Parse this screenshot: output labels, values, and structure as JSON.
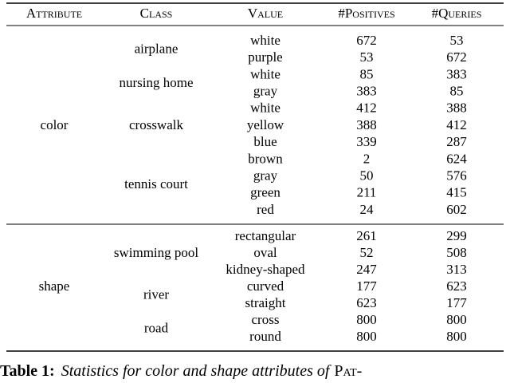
{
  "table": {
    "header": [
      "Attribute",
      "Class",
      "Value",
      "#Positives",
      "#Queries"
    ],
    "groups": [
      {
        "attribute": "color",
        "classes": [
          {
            "name": "airplane",
            "rows": [
              {
                "value": "white",
                "positives": 672,
                "queries": 53
              },
              {
                "value": "purple",
                "positives": 53,
                "queries": 672
              }
            ]
          },
          {
            "name": "nursing home",
            "rows": [
              {
                "value": "white",
                "positives": 85,
                "queries": 383
              },
              {
                "value": "gray",
                "positives": 383,
                "queries": 85
              }
            ]
          },
          {
            "name": "crosswalk",
            "rows": [
              {
                "value": "white",
                "positives": 412,
                "queries": 388
              },
              {
                "value": "yellow",
                "positives": 388,
                "queries": 412
              },
              {
                "value": "blue",
                "positives": 339,
                "queries": 287
              }
            ]
          },
          {
            "name": "tennis court",
            "rows": [
              {
                "value": "brown",
                "positives": 2,
                "queries": 624
              },
              {
                "value": "gray",
                "positives": 50,
                "queries": 576
              },
              {
                "value": "green",
                "positives": 211,
                "queries": 415
              },
              {
                "value": "red",
                "positives": 24,
                "queries": 602
              }
            ]
          }
        ]
      },
      {
        "attribute": "shape",
        "classes": [
          {
            "name": "swimming pool",
            "rows": [
              {
                "value": "rectangular",
                "positives": 261,
                "queries": 299
              },
              {
                "value": "oval",
                "positives": 52,
                "queries": 508
              },
              {
                "value": "kidney-shaped",
                "positives": 247,
                "queries": 313
              }
            ]
          },
          {
            "name": "river",
            "rows": [
              {
                "value": "curved",
                "positives": 177,
                "queries": 623
              },
              {
                "value": "straight",
                "positives": 623,
                "queries": 177
              }
            ]
          },
          {
            "name": "road",
            "rows": [
              {
                "value": "cross",
                "positives": 800,
                "queries": 800
              },
              {
                "value": "round",
                "positives": 800,
                "queries": 800
              }
            ]
          }
        ]
      }
    ]
  },
  "caption": {
    "label": "Table 1:",
    "text": "Statistics for color and shape attributes of",
    "name": "Pat-"
  }
}
